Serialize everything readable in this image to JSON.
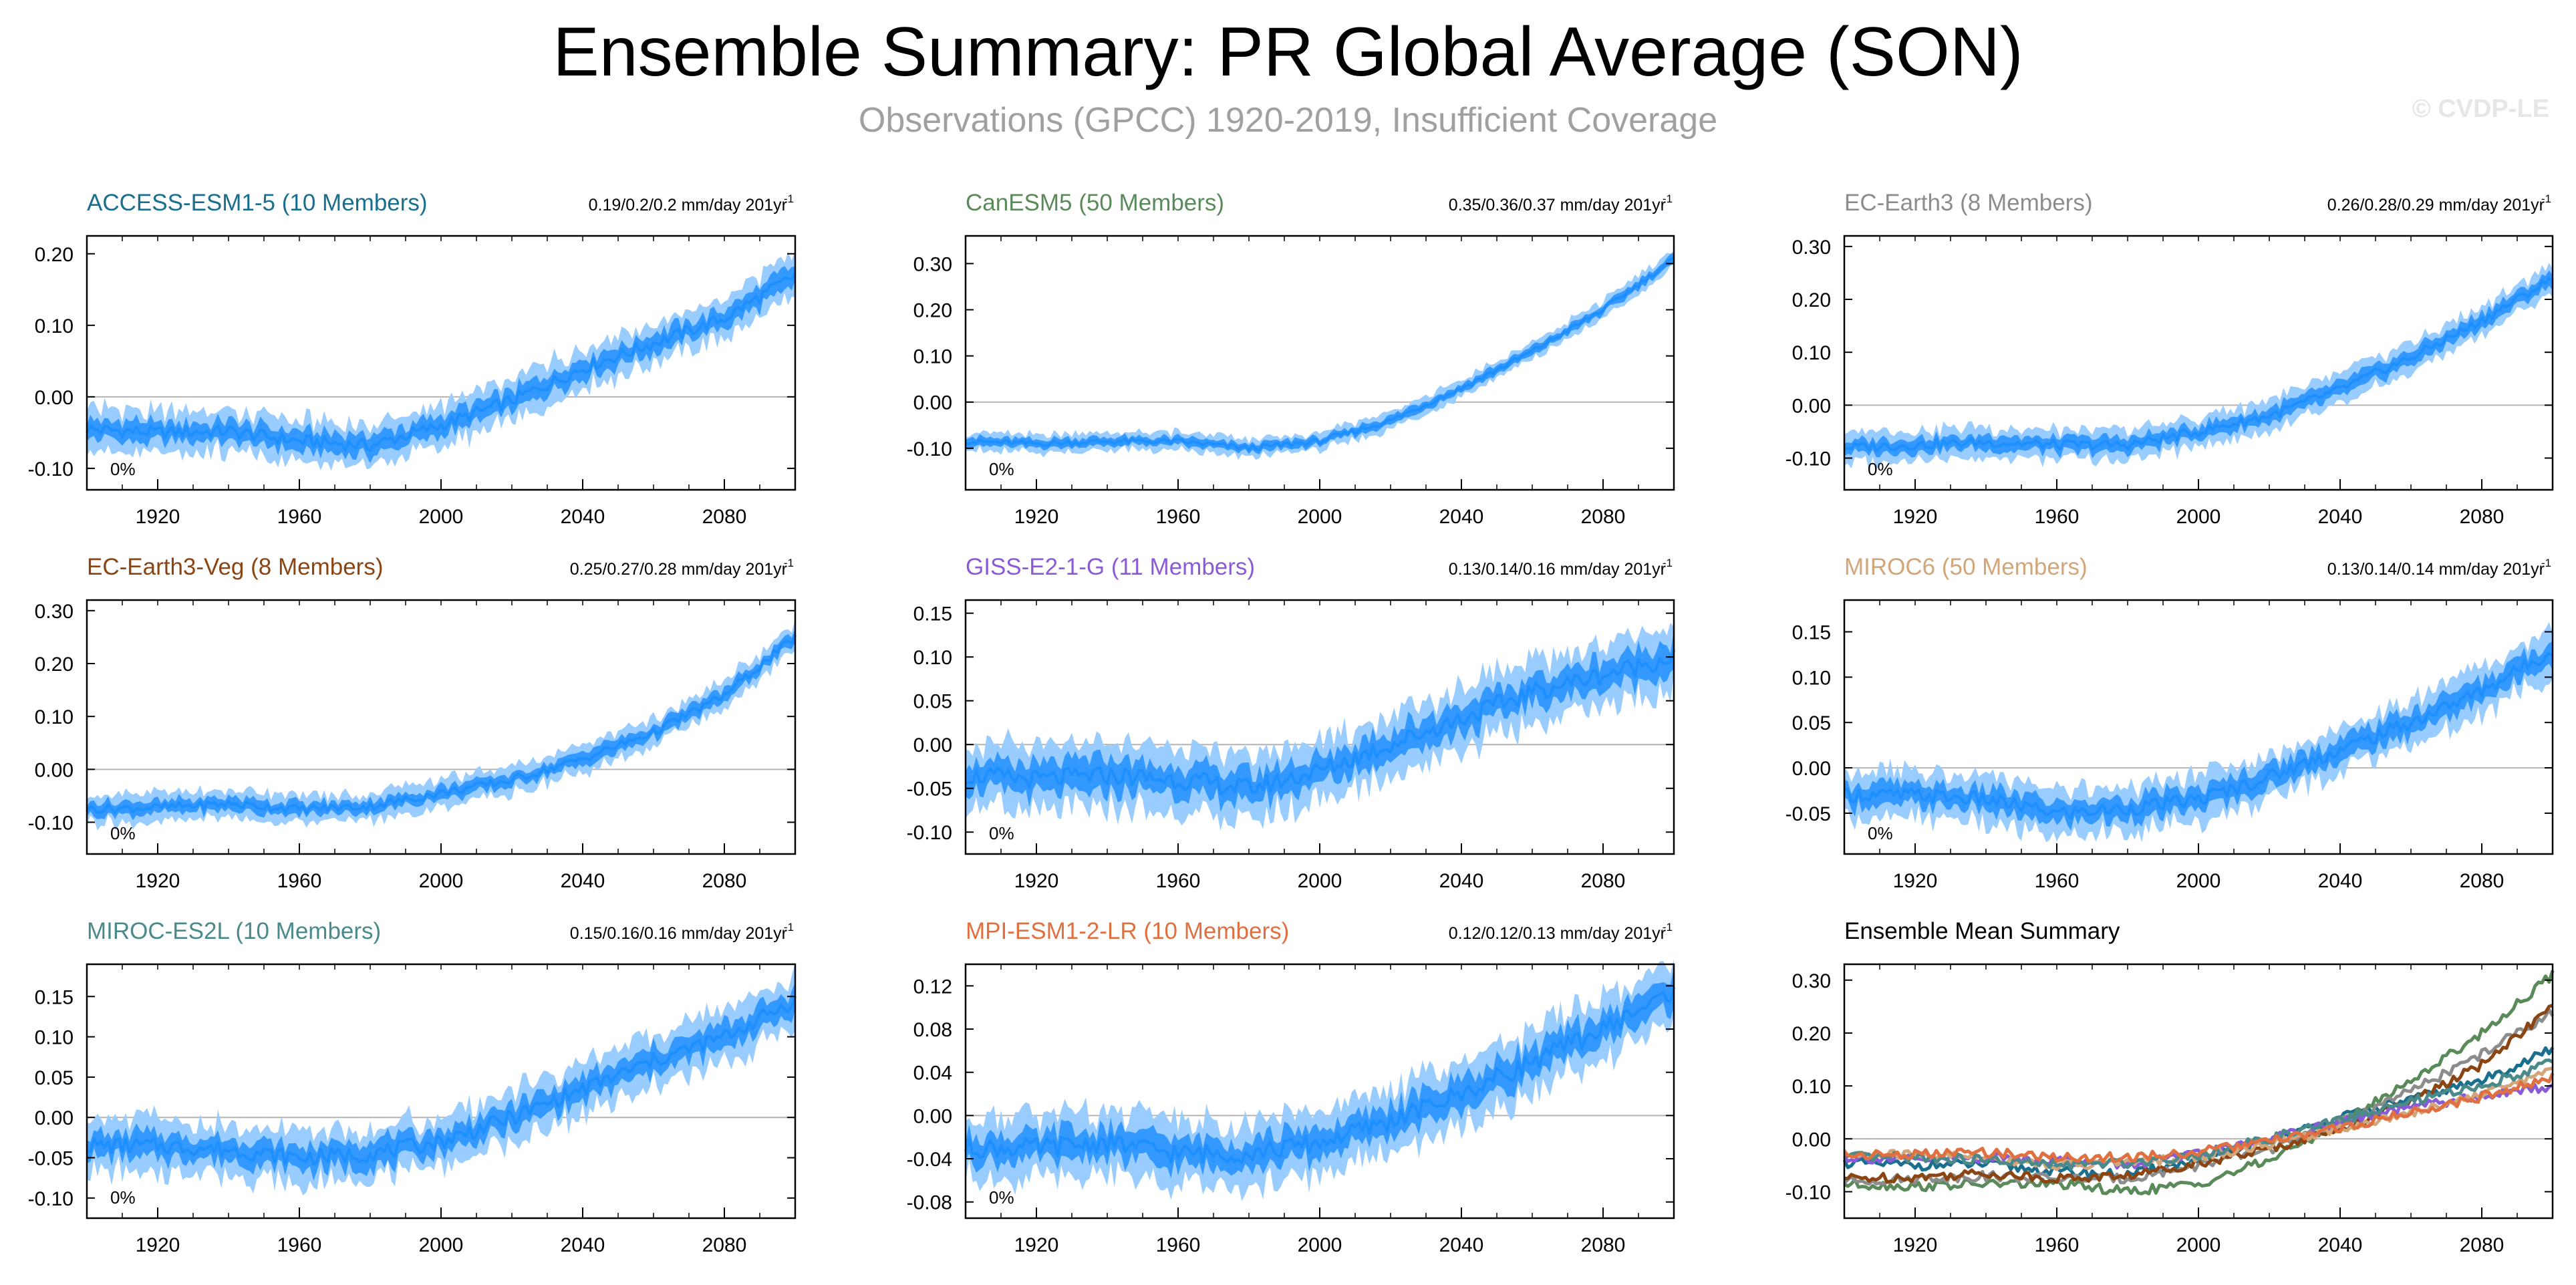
{
  "title": "Ensemble Summary: PR Global Average (SON)",
  "subtitle": "Observations (GPCC) 1920-2019, Insufficient Coverage",
  "watermark": "© CVDP-LE",
  "colors": {
    "band_outer": "#99ccff",
    "band_inner": "#3399ff",
    "mean": "#1e8fff",
    "zero_line": "#b4b4b4"
  },
  "chart_data": [
    {
      "type": "line",
      "title": "ACCESS-ESM1-5 (10 Members)",
      "title_color": "#1a6e8e",
      "trend_text": "0.19/0.2/0.2 mm/day 201yr",
      "percent": "0%",
      "xlim": [
        1900,
        2100
      ],
      "xticks": [
        "1920",
        "1960",
        "2000",
        "2040",
        "2080"
      ],
      "ylim": [
        -0.13,
        0.225
      ],
      "yticks": [
        "0.20",
        "0.10",
        "0.00",
        "-0.10"
      ],
      "ytick_values": [
        0.2,
        0.1,
        0.0,
        -0.1
      ],
      "x": [
        1900,
        1920,
        1940,
        1960,
        1980,
        2000,
        2020,
        2040,
        2060,
        2080,
        2100
      ],
      "y": [
        -0.045,
        -0.05,
        -0.048,
        -0.062,
        -0.068,
        -0.04,
        -0.005,
        0.04,
        0.075,
        0.11,
        0.17
      ],
      "spread": 0.018
    },
    {
      "type": "line",
      "title": "CanESM5 (50 Members)",
      "title_color": "#5a8a5a",
      "trend_text": "0.35/0.36/0.37 mm/day 201yr",
      "percent": "0%",
      "xlim": [
        1900,
        2100
      ],
      "xticks": [
        "1920",
        "1960",
        "2000",
        "2040",
        "2080"
      ],
      "ylim": [
        -0.19,
        0.36
      ],
      "yticks": [
        "0.30",
        "0.20",
        "0.10",
        "0.00",
        "-0.10"
      ],
      "ytick_values": [
        0.3,
        0.2,
        0.1,
        0.0,
        -0.1
      ],
      "x": [
        1900,
        1920,
        1940,
        1960,
        1980,
        2000,
        2020,
        2040,
        2060,
        2080,
        2100
      ],
      "y": [
        -0.085,
        -0.09,
        -0.085,
        -0.085,
        -0.1,
        -0.085,
        -0.04,
        0.03,
        0.11,
        0.2,
        0.31
      ],
      "spread": 0.012
    },
    {
      "type": "line",
      "title": "EC-Earth3 (8 Members)",
      "title_color": "#8c8c8c",
      "trend_text": "0.26/0.28/0.29 mm/day 201yr",
      "percent": "0%",
      "xlim": [
        1900,
        2100
      ],
      "xticks": [
        "1920",
        "1960",
        "2000",
        "2040",
        "2080"
      ],
      "ylim": [
        -0.16,
        0.32
      ],
      "yticks": [
        "0.30",
        "0.20",
        "0.10",
        "0.00",
        "-0.10"
      ],
      "ytick_values": [
        0.3,
        0.2,
        0.1,
        0.0,
        -0.1
      ],
      "x": [
        1900,
        1920,
        1940,
        1960,
        1980,
        2000,
        2020,
        2040,
        2060,
        2080,
        2100
      ],
      "y": [
        -0.08,
        -0.075,
        -0.07,
        -0.075,
        -0.075,
        -0.05,
        -0.02,
        0.03,
        0.09,
        0.16,
        0.24
      ],
      "spread": 0.018
    },
    {
      "type": "line",
      "title": "EC-Earth3-Veg (8 Members)",
      "title_color": "#8b4513",
      "trend_text": "0.25/0.27/0.28 mm/day 201yr",
      "percent": "0%",
      "xlim": [
        1900,
        2100
      ],
      "xticks": [
        "1920",
        "1960",
        "2000",
        "2040",
        "2080"
      ],
      "ylim": [
        -0.16,
        0.32
      ],
      "yticks": [
        "0.30",
        "0.20",
        "0.10",
        "0.00",
        "-0.10"
      ],
      "ytick_values": [
        0.3,
        0.2,
        0.1,
        0.0,
        -0.1
      ],
      "x": [
        1900,
        1920,
        1940,
        1960,
        1980,
        2000,
        2020,
        2040,
        2060,
        2080,
        2100
      ],
      "y": [
        -0.075,
        -0.072,
        -0.065,
        -0.075,
        -0.07,
        -0.045,
        -0.02,
        0.02,
        0.07,
        0.14,
        0.25
      ],
      "spread": 0.016
    },
    {
      "type": "line",
      "title": "GISS-E2-1-G (11 Members)",
      "title_color": "#8a5bd6",
      "trend_text": "0.13/0.14/0.16 mm/day 201yr",
      "percent": "0%",
      "xlim": [
        1900,
        2100
      ],
      "xticks": [
        "1920",
        "1960",
        "2000",
        "2040",
        "2080"
      ],
      "ylim": [
        -0.125,
        0.165
      ],
      "yticks": [
        "0.15",
        "0.10",
        "0.05",
        "0.00",
        "-0.05",
        "-0.10"
      ],
      "ytick_values": [
        0.15,
        0.1,
        0.05,
        0.0,
        -0.05,
        -0.1
      ],
      "x": [
        1900,
        1920,
        1940,
        1960,
        1980,
        2000,
        2020,
        2040,
        2060,
        2080,
        2100
      ],
      "y": [
        -0.035,
        -0.04,
        -0.035,
        -0.04,
        -0.05,
        -0.03,
        0.0,
        0.03,
        0.06,
        0.08,
        0.1
      ],
      "spread": 0.022
    },
    {
      "type": "line",
      "title": "MIROC6 (50 Members)",
      "title_color": "#d2a679",
      "trend_text": "0.13/0.14/0.14 mm/day 201yr",
      "percent": "0%",
      "xlim": [
        1900,
        2100
      ],
      "xticks": [
        "1920",
        "1960",
        "2000",
        "2040",
        "2080"
      ],
      "ylim": [
        -0.095,
        0.185
      ],
      "yticks": [
        "0.15",
        "0.10",
        "0.05",
        "0.00",
        "-0.05"
      ],
      "ytick_values": [
        0.15,
        0.1,
        0.05,
        0.0,
        -0.05
      ],
      "x": [
        1900,
        1920,
        1940,
        1960,
        1980,
        2000,
        2020,
        2040,
        2060,
        2080,
        2100
      ],
      "y": [
        -0.03,
        -0.03,
        -0.035,
        -0.05,
        -0.045,
        -0.035,
        -0.01,
        0.02,
        0.05,
        0.085,
        0.13
      ],
      "spread": 0.016
    },
    {
      "type": "line",
      "title": "MIROC-ES2L (10 Members)",
      "title_color": "#4a8a8a",
      "trend_text": "0.15/0.16/0.16 mm/day 201yr",
      "percent": "0%",
      "xlim": [
        1900,
        2100
      ],
      "xticks": [
        "1920",
        "1960",
        "2000",
        "2040",
        "2080"
      ],
      "ylim": [
        -0.125,
        0.19
      ],
      "yticks": [
        "0.15",
        "0.10",
        "0.05",
        "0.00",
        "-0.05",
        "-0.10"
      ],
      "ytick_values": [
        0.15,
        0.1,
        0.05,
        0.0,
        -0.05,
        -0.1
      ],
      "x": [
        1900,
        1920,
        1940,
        1960,
        1980,
        2000,
        2020,
        2040,
        2060,
        2080,
        2100
      ],
      "y": [
        -0.035,
        -0.035,
        -0.04,
        -0.05,
        -0.045,
        -0.03,
        0.0,
        0.035,
        0.07,
        0.1,
        0.145
      ],
      "spread": 0.02
    },
    {
      "type": "line",
      "title": "MPI-ESM1-2-LR (10 Members)",
      "title_color": "#e07040",
      "trend_text": "0.12/0.12/0.13 mm/day 201yr",
      "percent": "0%",
      "xlim": [
        1900,
        2100
      ],
      "xticks": [
        "1920",
        "1960",
        "2000",
        "2040",
        "2080"
      ],
      "ylim": [
        -0.095,
        0.14
      ],
      "yticks": [
        "0.12",
        "0.08",
        "0.04",
        "0.00",
        "-0.04",
        "-0.08"
      ],
      "ytick_values": [
        0.12,
        0.08,
        0.04,
        0.0,
        -0.04,
        -0.08
      ],
      "x": [
        1900,
        1920,
        1940,
        1960,
        1980,
        2000,
        2020,
        2040,
        2060,
        2080,
        2100
      ],
      "y": [
        -0.03,
        -0.03,
        -0.025,
        -0.035,
        -0.035,
        -0.025,
        -0.005,
        0.02,
        0.05,
        0.08,
        0.115
      ],
      "spread": 0.018
    },
    {
      "type": "line",
      "title": "Ensemble Mean Summary",
      "title_color": "#000000",
      "xlim": [
        1900,
        2100
      ],
      "xticks": [
        "1920",
        "1960",
        "2000",
        "2040",
        "2080"
      ],
      "ylim": [
        -0.15,
        0.33
      ],
      "yticks": [
        "0.30",
        "0.20",
        "0.10",
        "0.00",
        "-0.10"
      ],
      "ytick_values": [
        0.3,
        0.2,
        0.1,
        0.0,
        -0.1
      ],
      "x": [
        1900,
        1920,
        1940,
        1960,
        1980,
        2000,
        2020,
        2040,
        2060,
        2080,
        2100
      ],
      "series": [
        {
          "name": "ACCESS-ESM1-5",
          "color": "#1a6e8e",
          "values": [
            -0.045,
            -0.05,
            -0.048,
            -0.062,
            -0.068,
            -0.04,
            -0.005,
            0.04,
            0.075,
            0.11,
            0.17
          ]
        },
        {
          "name": "CanESM5",
          "color": "#5a8a5a",
          "values": [
            -0.085,
            -0.09,
            -0.085,
            -0.085,
            -0.1,
            -0.085,
            -0.04,
            0.03,
            0.11,
            0.2,
            0.31
          ]
        },
        {
          "name": "EC-Earth3",
          "color": "#8c8c8c",
          "values": [
            -0.08,
            -0.075,
            -0.07,
            -0.075,
            -0.075,
            -0.05,
            -0.02,
            0.03,
            0.09,
            0.16,
            0.24
          ]
        },
        {
          "name": "EC-Earth3-Veg",
          "color": "#8b4513",
          "values": [
            -0.075,
            -0.072,
            -0.065,
            -0.075,
            -0.07,
            -0.045,
            -0.02,
            0.02,
            0.07,
            0.14,
            0.25
          ]
        },
        {
          "name": "GISS-E2-1-G",
          "color": "#8a5bd6",
          "values": [
            -0.035,
            -0.04,
            -0.035,
            -0.04,
            -0.05,
            -0.03,
            0.0,
            0.03,
            0.06,
            0.08,
            0.1
          ]
        },
        {
          "name": "MIROC6",
          "color": "#d2a679",
          "values": [
            -0.03,
            -0.03,
            -0.035,
            -0.05,
            -0.045,
            -0.035,
            -0.01,
            0.02,
            0.05,
            0.085,
            0.13
          ]
        },
        {
          "name": "MIROC-ES2L",
          "color": "#4a8a8a",
          "values": [
            -0.035,
            -0.035,
            -0.04,
            -0.05,
            -0.045,
            -0.03,
            0.0,
            0.035,
            0.07,
            0.1,
            0.145
          ]
        },
        {
          "name": "MPI-ESM1-2-LR",
          "color": "#e07040",
          "values": [
            -0.03,
            -0.03,
            -0.025,
            -0.035,
            -0.035,
            -0.025,
            -0.005,
            0.02,
            0.05,
            0.08,
            0.115
          ]
        }
      ]
    }
  ]
}
